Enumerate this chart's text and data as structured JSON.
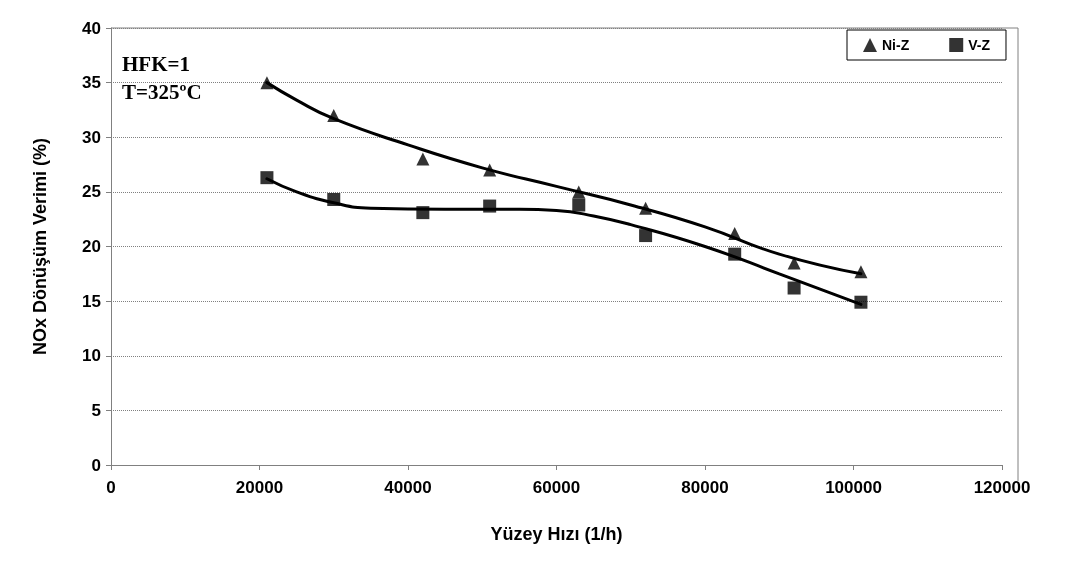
{
  "chart_data": {
    "type": "scatter",
    "xlabel": "Yüzey Hızı (1/h)",
    "ylabel": "NOx Dönüşüm Verimi (%)",
    "annotations": [
      "HFK=1",
      "T=325ºC"
    ],
    "x": [
      21000,
      30000,
      42000,
      51000,
      63000,
      72000,
      84000,
      92000,
      101000
    ],
    "series": [
      {
        "name": "Ni-Z",
        "color": "#000000",
        "marker": "triangle",
        "values": [
          35,
          32,
          28,
          27,
          25,
          23.5,
          21.2,
          18.5,
          17.7
        ]
      },
      {
        "name": "V-Z",
        "color": "#000000",
        "marker": "square",
        "values": [
          26.3,
          24.3,
          23.1,
          23.7,
          23.8,
          21,
          19.3,
          16.2,
          14.9
        ]
      },
      {
        "type": "line",
        "color": "#000000",
        "marker": "none",
        "x": [
          21000,
          25000,
          30000,
          40000,
          50000,
          60000,
          70000,
          80000,
          90000,
          101000
        ],
        "values": [
          35,
          33.4,
          31.7,
          29.3,
          27.2,
          25.5,
          23.8,
          21.8,
          19.3,
          17.5
        ]
      },
      {
        "type": "line",
        "color": "#000000",
        "marker": "none",
        "x": [
          21000,
          25000,
          30000,
          35000,
          45000,
          55000,
          60000,
          65000,
          70000,
          80000,
          90000,
          101000
        ],
        "values": [
          26.2,
          25,
          24,
          23.5,
          23.4,
          23.4,
          23.3,
          22.8,
          22,
          20,
          17.5,
          14.7
        ]
      }
    ],
    "xlim": [
      0,
      120000
    ],
    "xticks": [
      0,
      20000,
      40000,
      60000,
      80000,
      100000,
      120000
    ],
    "ylim": [
      0,
      40
    ],
    "yticks": [
      0,
      5,
      10,
      15,
      20,
      25,
      30,
      35,
      40
    ],
    "grid": "y",
    "legend": "top right"
  }
}
